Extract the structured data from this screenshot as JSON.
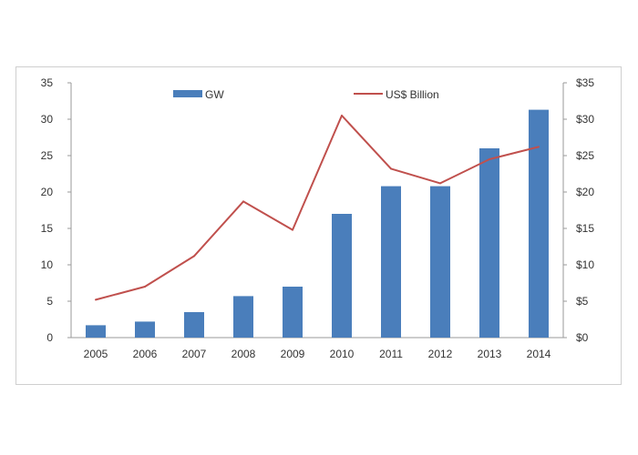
{
  "chart_data": {
    "type": "bar",
    "categories": [
      "2005",
      "2006",
      "2007",
      "2008",
      "2009",
      "2010",
      "2011",
      "2012",
      "2013",
      "2014"
    ],
    "series": [
      {
        "name": "GW",
        "type": "bar",
        "axis": "left",
        "color": "#4a7ebb",
        "values": [
          1.7,
          2.2,
          3.5,
          5.7,
          7.0,
          17.0,
          20.8,
          20.8,
          26.0,
          31.3
        ]
      },
      {
        "name": "US$ Billion",
        "type": "line",
        "axis": "right",
        "color": "#c0504d",
        "values": [
          5.2,
          7.0,
          11.2,
          18.7,
          14.8,
          30.5,
          23.2,
          21.2,
          24.5,
          26.2
        ]
      }
    ],
    "y_left": {
      "range": [
        0,
        35
      ],
      "ticks": [
        "0",
        "5",
        "10",
        "15",
        "20",
        "25",
        "30",
        "35"
      ]
    },
    "y_right": {
      "range": [
        0,
        35
      ],
      "ticks": [
        "$0",
        "$5",
        "$10",
        "$15",
        "$20",
        "$25",
        "$30",
        "$35"
      ]
    },
    "grid": false,
    "legend": "top"
  }
}
